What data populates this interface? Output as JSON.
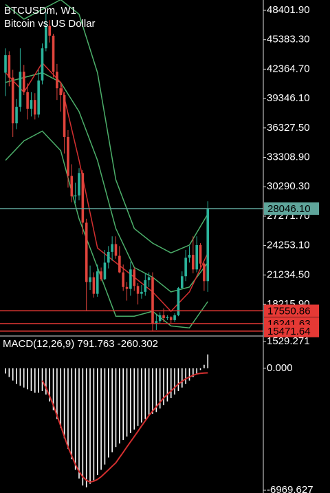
{
  "chart_data": [
    {
      "type": "candlestick",
      "title": "BTCUSDm, W1",
      "subtitle": "Bitcoin vs US Dollar",
      "open": [
        42000,
        43800,
        41500,
        36800,
        38500,
        42100,
        40000,
        38300,
        39200,
        37700,
        41200,
        44500,
        46800,
        45800,
        42100,
        40400,
        39700,
        35400,
        31400,
        29300,
        29400,
        31700,
        26600,
        20500,
        21000,
        19300,
        21600,
        20800,
        22500,
        23600,
        24400,
        23200,
        21500,
        20000,
        19800,
        21800,
        20100,
        19300,
        19500,
        20700,
        21000,
        16200,
        16500,
        17100,
        16800,
        16900,
        16600,
        17100,
        19900,
        21100,
        23000,
        23300,
        21800,
        24300,
        22400,
        20600
      ],
      "high": [
        44500,
        44200,
        42300,
        39300,
        44500,
        42800,
        40900,
        40000,
        39900,
        42300,
        45000,
        48200,
        47400,
        46000,
        42900,
        41000,
        40000,
        36100,
        32600,
        30700,
        32200,
        32000,
        27000,
        22200,
        21500,
        22300,
        22000,
        23800,
        24200,
        25200,
        25200,
        24200,
        22300,
        20500,
        22600,
        22000,
        20400,
        20200,
        21400,
        21500,
        21500,
        17200,
        17400,
        17800,
        17100,
        17000,
        17300,
        20000,
        21600,
        23800,
        24200,
        25200,
        25200,
        24500,
        22500,
        28800
      ],
      "low": [
        39600,
        40600,
        35400,
        36200,
        38000,
        39700,
        37200,
        37500,
        37200,
        37400,
        40800,
        44200,
        45100,
        41500,
        39200,
        38000,
        33700,
        30200,
        28700,
        28600,
        28900,
        25400,
        17600,
        19700,
        18900,
        19000,
        20600,
        20700,
        21900,
        22700,
        22900,
        21400,
        19600,
        18600,
        19100,
        19600,
        18200,
        18800,
        19100,
        20000,
        15500,
        15600,
        16300,
        16400,
        16600,
        16300,
        16400,
        17000,
        19800,
        20600,
        22500,
        21400,
        21500,
        22000,
        19600,
        19500
      ],
      "close": [
        43800,
        41500,
        36800,
        38500,
        42100,
        40000,
        38300,
        39200,
        37700,
        41200,
        44500,
        46800,
        45800,
        42100,
        40400,
        39700,
        35400,
        31400,
        29300,
        29400,
        31700,
        26600,
        20500,
        21000,
        19300,
        21600,
        20800,
        22500,
        23600,
        24400,
        23200,
        21500,
        20000,
        19800,
        21800,
        20100,
        19300,
        19500,
        20700,
        21000,
        16200,
        16500,
        17100,
        16800,
        16900,
        16600,
        17100,
        19900,
        21100,
        23000,
        23300,
        21800,
        24300,
        22400,
        20600,
        28046
      ],
      "up_color": "#2bb39b",
      "down_color": "#e0443c",
      "overlays": [
        {
          "color": "#4caf6a",
          "x": [
            0,
            5,
            10,
            15,
            20,
            25,
            30,
            35,
            40,
            45,
            50,
            55
          ],
          "values": [
            49000,
            47500,
            48500,
            49500,
            48000,
            42000,
            31000,
            26000,
            24500,
            23500,
            24300,
            27500
          ]
        },
        {
          "color": "#4caf6a",
          "x": [
            0,
            5,
            10,
            15,
            20,
            25,
            30,
            35,
            40,
            45,
            50,
            55
          ],
          "values": [
            41000,
            41500,
            42000,
            41000,
            38000,
            33000,
            26000,
            22000,
            21000,
            19500,
            20000,
            22500
          ]
        },
        {
          "color": "#4caf6a",
          "x": [
            0,
            5,
            10,
            15,
            20,
            25,
            30,
            35,
            40,
            45,
            50,
            55
          ],
          "values": [
            33000,
            35000,
            36000,
            34000,
            27000,
            22000,
            17000,
            17000,
            17500,
            16000,
            15800,
            18500
          ]
        },
        {
          "color": "#d32f2f",
          "x": [
            0,
            5,
            10,
            15,
            20,
            25,
            30,
            35,
            40,
            45,
            50,
            55
          ],
          "values": [
            42000,
            40000,
            43000,
            41000,
            33000,
            24000,
            22500,
            21000,
            19500,
            17500,
            19500,
            23500
          ]
        }
      ],
      "levels": [
        {
          "value": 28046.1,
          "label": "28046.10"
        },
        17550.86,
        16241.63,
        15471.64
      ],
      "level_colors": [
        "#5fa59b",
        "#e53935",
        "#e53935",
        "#e53935"
      ],
      "ylim": [
        15036,
        49462
      ],
      "yticks": [
        {
          "value": 48401.9,
          "label": "48401.90"
        },
        {
          "value": 45383.3,
          "label": "45383.30"
        },
        {
          "value": 42364.7,
          "label": "42364.70"
        },
        {
          "value": 39346.1,
          "label": "39346.10"
        },
        {
          "value": 36327.5,
          "label": "36327.50"
        },
        {
          "value": 33308.9,
          "label": "33308.90"
        },
        {
          "value": 30290.3,
          "label": "30290.30"
        },
        {
          "value": 27271.7,
          "label": "27271.70"
        },
        {
          "value": 24253.1,
          "label": "24253.10"
        },
        {
          "value": 21234.5,
          "label": "21234.50"
        },
        {
          "value": 18215.9,
          "label": "18215.90"
        }
      ]
    },
    {
      "type": "macd",
      "title": "MACD(12,26,9)",
      "series": [
        {
          "color": "#ffffff",
          "values": [
            -300,
            -500,
            -700,
            -900,
            -1000,
            -1100,
            -1200,
            -1300,
            -1400,
            -1400,
            -1300,
            -1500,
            -1900,
            -2400,
            -2900,
            -3400,
            -4000,
            -4600,
            -5200,
            -5800,
            -6300,
            -6700,
            -6800,
            -6600,
            -6400,
            -6100,
            -5800,
            -5500,
            -5100,
            -4800,
            -4500,
            -4300,
            -4100,
            -3900,
            -3700,
            -3500,
            -3300,
            -3100,
            -2900,
            -2700,
            -2600,
            -2500,
            -2300,
            -2100,
            -1900,
            -1700,
            -1500,
            -1300,
            -1100,
            -900,
            -700,
            -500,
            -300,
            -100,
            200,
            791.763
          ]
        },
        {
          "color": "#d32f2f",
          "values": [
            null,
            null,
            null,
            null,
            null,
            null,
            null,
            null,
            null,
            null,
            -700,
            -1100,
            -1600,
            -2100,
            -2700,
            -3300,
            -3900,
            -4500,
            -5000,
            -5500,
            -5900,
            -6200,
            -6400,
            -6500,
            -6450,
            -6350,
            -6200,
            -6000,
            -5800,
            -5600,
            -5400,
            -5100,
            -4800,
            -4500,
            -4200,
            -3900,
            -3600,
            -3300,
            -3000,
            -2700,
            -2450,
            -2200,
            -1950,
            -1700,
            -1500,
            -1300,
            -1100,
            -900,
            -750,
            -600,
            -500,
            -400,
            -330,
            -290,
            -270,
            -260.302
          ]
        }
      ],
      "ylim": [
        -7127,
        1765
      ],
      "yticks": [
        1529.271,
        {
          "value": 0,
          "label": "0.000"
        },
        -6969.627
      ]
    }
  ]
}
